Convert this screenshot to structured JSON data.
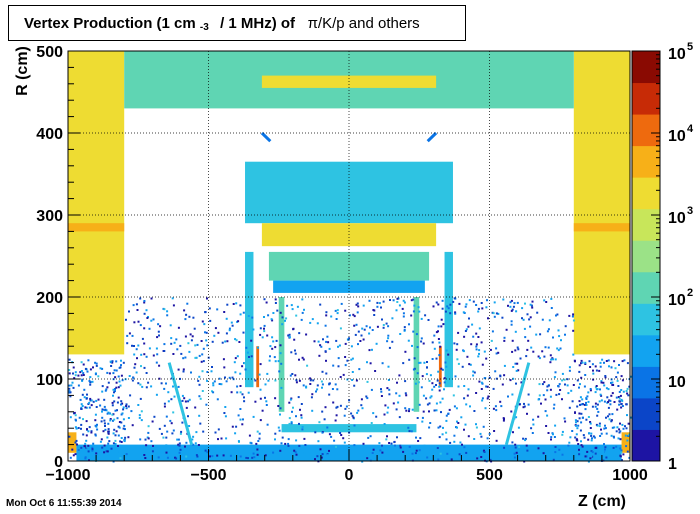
{
  "title": {
    "prefix": "Vertex Production (1 cm",
    "exponent": "-3",
    "middle": "/ 1 MHz) of",
    "particles": "π/K/p and others"
  },
  "timestamp": "Mon Oct  6 11:55:39 2014",
  "chart_data": {
    "type": "heatmap",
    "xlabel": "Z (cm)",
    "ylabel": "R (cm)",
    "xlim": [
      -1000,
      1000
    ],
    "ylim": [
      0,
      500
    ],
    "x_ticks": [
      {
        "value": -1000,
        "label": "−1000"
      },
      {
        "value": -500,
        "label": "−500"
      },
      {
        "value": 0,
        "label": "0"
      },
      {
        "value": 500,
        "label": "500"
      },
      {
        "value": 1000,
        "label": "1000"
      }
    ],
    "y_ticks": [
      {
        "value": 0,
        "label": "0"
      },
      {
        "value": 100,
        "label": "100"
      },
      {
        "value": 200,
        "label": "200"
      },
      {
        "value": 300,
        "label": "300"
      },
      {
        "value": 400,
        "label": "400"
      },
      {
        "value": 500,
        "label": "500"
      }
    ],
    "color_scale": "log",
    "zlim": [
      1,
      100000
    ],
    "z_ticks": [
      {
        "value": 1,
        "base": "1",
        "exp": ""
      },
      {
        "value": 10,
        "base": "10",
        "exp": ""
      },
      {
        "value": 100,
        "base": "10",
        "exp": "2"
      },
      {
        "value": 1000,
        "base": "10",
        "exp": "3"
      },
      {
        "value": 10000,
        "base": "10",
        "exp": "4"
      },
      {
        "value": 100000,
        "base": "10",
        "exp": "5"
      }
    ],
    "grid": true,
    "colormap": [
      "#1d14a3",
      "#0b45c8",
      "#0a74e6",
      "#12a3f0",
      "#2ec3e2",
      "#5fd5b3",
      "#9be287",
      "#c8e65a",
      "#eedc32",
      "#f7b018",
      "#ee6a0e",
      "#c72b06",
      "#8a0a02"
    ],
    "regions": [
      {
        "z": [
          -1000,
          -800
        ],
        "r": [
          130,
          500
        ],
        "density": 1200
      },
      {
        "z": [
          800,
          1000
        ],
        "r": [
          130,
          500
        ],
        "density": 1200
      },
      {
        "z": [
          -1000,
          -800
        ],
        "r": [
          280,
          290
        ],
        "density": 4000
      },
      {
        "z": [
          800,
          1000
        ],
        "r": [
          280,
          290
        ],
        "density": 4000
      },
      {
        "z": [
          -800,
          800
        ],
        "r": [
          430,
          500
        ],
        "density": 150
      },
      {
        "z": [
          -310,
          310
        ],
        "r": [
          455,
          470
        ],
        "density": 1500
      },
      {
        "z": [
          -370,
          370
        ],
        "r": [
          290,
          365
        ],
        "density": 70
      },
      {
        "z": [
          -310,
          310
        ],
        "r": [
          262,
          290
        ],
        "density": 2500
      },
      {
        "z": [
          -285,
          285
        ],
        "r": [
          220,
          255
        ],
        "density": 120
      },
      {
        "z": [
          -270,
          270
        ],
        "r": [
          205,
          220
        ],
        "density": 25
      },
      {
        "z": [
          -370,
          -340
        ],
        "r": [
          90,
          255
        ],
        "density": 60
      },
      {
        "z": [
          340,
          370
        ],
        "r": [
          90,
          255
        ],
        "density": 60
      },
      {
        "z": [
          -330,
          -320
        ],
        "r": [
          90,
          140
        ],
        "density": 12000
      },
      {
        "z": [
          320,
          330
        ],
        "r": [
          90,
          140
        ],
        "density": 12000
      },
      {
        "z": [
          -250,
          -230
        ],
        "r": [
          60,
          200
        ],
        "density": 90
      },
      {
        "z": [
          230,
          250
        ],
        "r": [
          60,
          200
        ],
        "density": 90
      },
      {
        "z": [
          -240,
          240
        ],
        "r": [
          35,
          45
        ],
        "density": 40
      },
      {
        "z": [
          -1000,
          -970
        ],
        "r": [
          10,
          35
        ],
        "density": 6000
      },
      {
        "z": [
          970,
          1000
        ],
        "r": [
          10,
          35
        ],
        "density": 6000
      },
      {
        "z": [
          -970,
          970
        ],
        "r": [
          0,
          20
        ],
        "density": 15
      }
    ],
    "sparse_regions": [
      {
        "z": [
          -1000,
          -800
        ],
        "r": [
          0,
          125
        ],
        "density": 8
      },
      {
        "z": [
          800,
          1000
        ],
        "r": [
          0,
          125
        ],
        "density": 8
      },
      {
        "z": [
          -800,
          800
        ],
        "r": [
          0,
          200
        ],
        "density": 3
      }
    ],
    "line_features": [
      {
        "z": [
          -640,
          -560
        ],
        "r": [
          120,
          20
        ],
        "density": 60
      },
      {
        "z": [
          560,
          640
        ],
        "r": [
          20,
          120
        ],
        "density": 60
      },
      {
        "z": [
          -310,
          -280
        ],
        "r": [
          400,
          390
        ],
        "density": 8
      },
      {
        "z": [
          280,
          310
        ],
        "r": [
          390,
          400
        ],
        "density": 8
      }
    ]
  }
}
